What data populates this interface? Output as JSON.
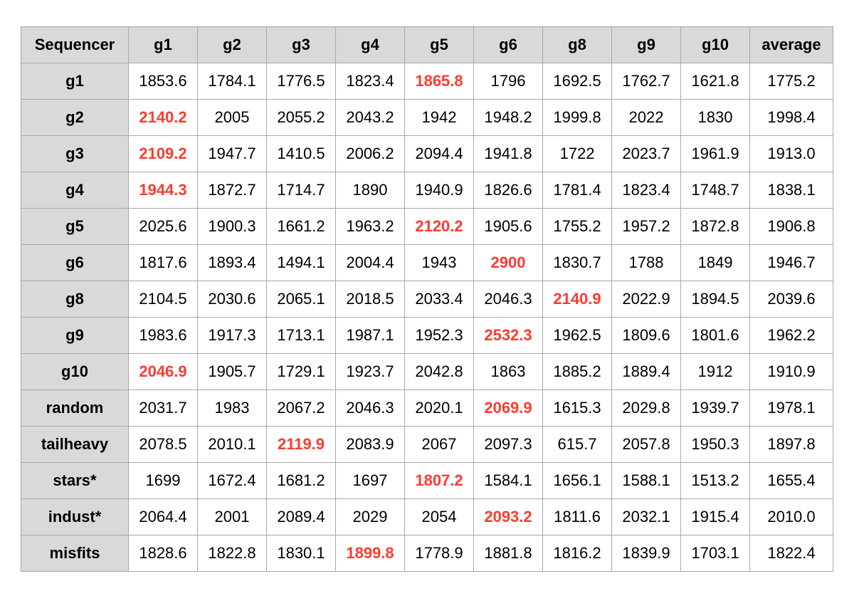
{
  "chart_data": {
    "type": "table",
    "row_header_label": "Sequencer",
    "columns": [
      "g1",
      "g2",
      "g3",
      "g4",
      "g5",
      "g6",
      "g8",
      "g9",
      "g10",
      "average"
    ],
    "rows": [
      {
        "label": "g1",
        "values": [
          "1853.6",
          "1784.1",
          "1776.5",
          "1823.4",
          "1865.8",
          "1796",
          "1692.5",
          "1762.7",
          "1621.8",
          "1775.2"
        ],
        "highlight": [
          4
        ]
      },
      {
        "label": "g2",
        "values": [
          "2140.2",
          "2005",
          "2055.2",
          "2043.2",
          "1942",
          "1948.2",
          "1999.8",
          "2022",
          "1830",
          "1998.4"
        ],
        "highlight": [
          0
        ]
      },
      {
        "label": "g3",
        "values": [
          "2109.2",
          "1947.7",
          "1410.5",
          "2006.2",
          "2094.4",
          "1941.8",
          "1722",
          "2023.7",
          "1961.9",
          "1913.0"
        ],
        "highlight": [
          0
        ]
      },
      {
        "label": "g4",
        "values": [
          "1944.3",
          "1872.7",
          "1714.7",
          "1890",
          "1940.9",
          "1826.6",
          "1781.4",
          "1823.4",
          "1748.7",
          "1838.1"
        ],
        "highlight": [
          0
        ]
      },
      {
        "label": "g5",
        "values": [
          "2025.6",
          "1900.3",
          "1661.2",
          "1963.2",
          "2120.2",
          "1905.6",
          "1755.2",
          "1957.2",
          "1872.8",
          "1906.8"
        ],
        "highlight": [
          4
        ]
      },
      {
        "label": "g6",
        "values": [
          "1817.6",
          "1893.4",
          "1494.1",
          "2004.4",
          "1943",
          "2900",
          "1830.7",
          "1788",
          "1849",
          "1946.7"
        ],
        "highlight": [
          5
        ]
      },
      {
        "label": "g8",
        "values": [
          "2104.5",
          "2030.6",
          "2065.1",
          "2018.5",
          "2033.4",
          "2046.3",
          "2140.9",
          "2022.9",
          "1894.5",
          "2039.6"
        ],
        "highlight": [
          6
        ]
      },
      {
        "label": "g9",
        "values": [
          "1983.6",
          "1917.3",
          "1713.1",
          "1987.1",
          "1952.3",
          "2532.3",
          "1962.5",
          "1809.6",
          "1801.6",
          "1962.2"
        ],
        "highlight": [
          5
        ]
      },
      {
        "label": "g10",
        "values": [
          "2046.9",
          "1905.7",
          "1729.1",
          "1923.7",
          "2042.8",
          "1863",
          "1885.2",
          "1889.4",
          "1912",
          "1910.9"
        ],
        "highlight": [
          0
        ]
      },
      {
        "label": "random",
        "values": [
          "2031.7",
          "1983",
          "2067.2",
          "2046.3",
          "2020.1",
          "2069.9",
          "1615.3",
          "2029.8",
          "1939.7",
          "1978.1"
        ],
        "highlight": [
          5
        ]
      },
      {
        "label": "tailheavy",
        "values": [
          "2078.5",
          "2010.1",
          "2119.9",
          "2083.9",
          "2067",
          "2097.3",
          "615.7",
          "2057.8",
          "1950.3",
          "1897.8"
        ],
        "highlight": [
          2
        ]
      },
      {
        "label": "stars*",
        "values": [
          "1699",
          "1672.4",
          "1681.2",
          "1697",
          "1807.2",
          "1584.1",
          "1656.1",
          "1588.1",
          "1513.2",
          "1655.4"
        ],
        "highlight": [
          4
        ]
      },
      {
        "label": "indust*",
        "values": [
          "2064.4",
          "2001",
          "2089.4",
          "2029",
          "2054",
          "2093.2",
          "1811.6",
          "2032.1",
          "1915.4",
          "2010.0"
        ],
        "highlight": [
          5
        ]
      },
      {
        "label": "misfits",
        "values": [
          "1828.6",
          "1822.8",
          "1830.1",
          "1899.8",
          "1778.9",
          "1881.8",
          "1816.2",
          "1839.9",
          "1703.1",
          "1822.4"
        ],
        "highlight": [
          3
        ]
      }
    ]
  },
  "colors": {
    "header_background": "#d9d9d9",
    "border": "#a8a8a8",
    "highlight_text": "#ff3b30",
    "text": "#000000"
  }
}
